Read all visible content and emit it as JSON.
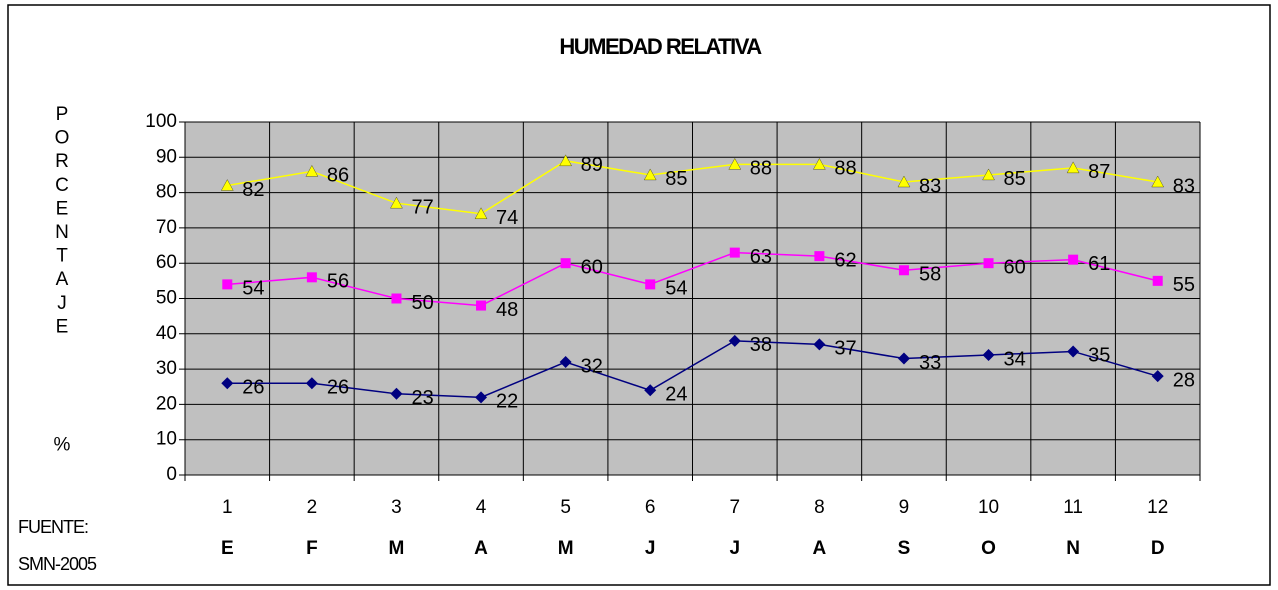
{
  "chart_data": {
    "type": "line",
    "title": "HUMEDAD RELATIVA",
    "y_label": "PORCENTAJE %",
    "source": [
      "FUENTE:",
      "SMN-2005"
    ],
    "categories": [
      "1",
      "2",
      "3",
      "4",
      "5",
      "6",
      "7",
      "8",
      "9",
      "10",
      "11",
      "12"
    ],
    "month_labels": [
      "E",
      "F",
      "M",
      "A",
      "M",
      "J",
      "J",
      "A",
      "S",
      "O",
      "N",
      "D"
    ],
    "ylim": [
      0,
      100
    ],
    "yticks": [
      0,
      10,
      20,
      30,
      40,
      50,
      60,
      70,
      80,
      90,
      100
    ],
    "grid": true,
    "plot_background": "#c0c0c0",
    "series": [
      {
        "color": "#ffff00",
        "marker": "triangle",
        "values": [
          82,
          86,
          77,
          74,
          89,
          85,
          88,
          88,
          83,
          85,
          87,
          83
        ]
      },
      {
        "color": "#ff00ff",
        "marker": "square",
        "values": [
          54,
          56,
          50,
          48,
          60,
          54,
          63,
          62,
          58,
          60,
          61,
          55
        ]
      },
      {
        "color": "#000080",
        "marker": "diamond",
        "values": [
          26,
          26,
          23,
          22,
          32,
          24,
          38,
          37,
          33,
          34,
          35,
          28
        ]
      }
    ]
  }
}
